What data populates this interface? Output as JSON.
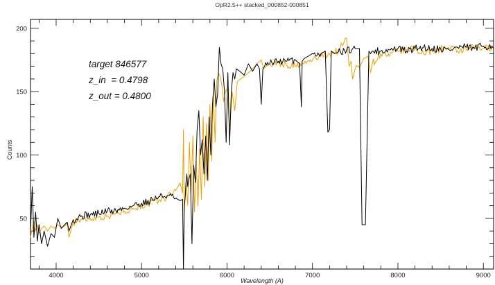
{
  "chart_data": {
    "type": "line",
    "title": "OpR2.5++ stacked_000852-000851",
    "xlabel": "Wavelength (A)",
    "ylabel": "Counts",
    "xlim": [
      3700,
      9120
    ],
    "ylim": [
      10,
      207
    ],
    "x_ticks": [
      4000,
      5000,
      6000,
      7000,
      8000,
      9000
    ],
    "y_ticks": [
      50,
      100,
      150,
      200
    ],
    "grid": false,
    "annotations": [
      "target 846577",
      "z_in  = 0.4798",
      "z_out = 0.4800"
    ],
    "colors": {
      "observed": "#000000",
      "template": "#f0a000"
    },
    "series": [
      {
        "key": "observed",
        "x": [
          3700,
          3720,
          3740,
          3760,
          3780,
          3800,
          3830,
          3860,
          3900,
          3940,
          3980,
          4020,
          4060,
          4100,
          4130,
          4150,
          4200,
          4300,
          4400,
          4500,
          4600,
          4700,
          4800,
          4900,
          5000,
          5100,
          5200,
          5300,
          5400,
          5450,
          5480,
          5490,
          5500,
          5510,
          5520,
          5530,
          5540,
          5550,
          5570,
          5590,
          5610,
          5630,
          5650,
          5670,
          5690,
          5710,
          5730,
          5750,
          5770,
          5790,
          5810,
          5830,
          5850,
          5870,
          5890,
          5910,
          5930,
          5950,
          5970,
          5990,
          6010,
          6030,
          6050,
          6070,
          6090,
          6110,
          6150,
          6200,
          6250,
          6300,
          6350,
          6380,
          6400,
          6420,
          6440,
          6500,
          6600,
          6700,
          6800,
          6850,
          6870,
          6880,
          6900,
          6950,
          7000,
          7100,
          7150,
          7180,
          7200,
          7220,
          7260,
          7300,
          7400,
          7500,
          7550,
          7580,
          7600,
          7620,
          7660,
          7680,
          7700,
          7800,
          7900,
          8000,
          8100,
          8200,
          8300,
          8400,
          8500,
          8600,
          8700,
          8800,
          8900,
          9000,
          9100,
          9120
        ],
        "y": [
          40,
          75,
          35,
          55,
          32,
          45,
          30,
          40,
          28,
          38,
          35,
          50,
          42,
          45,
          47,
          40,
          49,
          52,
          53,
          54,
          56,
          56,
          58,
          60,
          62,
          64,
          67,
          68,
          66,
          64,
          65,
          10,
          60,
          66,
          78,
          85,
          75,
          80,
          85,
          30,
          92,
          78,
          120,
          135,
          100,
          112,
          85,
          115,
          80,
          130,
          100,
          140,
          160,
          138,
          148,
          185,
          172,
          168,
          150,
          110,
          165,
          108,
          150,
          165,
          160,
          168,
          166,
          163,
          172,
          166,
          172,
          168,
          140,
          168,
          170,
          172,
          174,
          174,
          175,
          172,
          138,
          174,
          176,
          178,
          180,
          180,
          182,
          118,
          120,
          182,
          180,
          181,
          183,
          184,
          184,
          45,
          45,
          45,
          182,
          180,
          182,
          182,
          183,
          184,
          182,
          184,
          185,
          184,
          184,
          183,
          185,
          185,
          184,
          186,
          186,
          184
        ]
      },
      {
        "key": "template",
        "x": [
          3700,
          3720,
          3740,
          3760,
          3780,
          3800,
          3830,
          3860,
          3900,
          3940,
          3980,
          4020,
          4060,
          4100,
          4130,
          4150,
          4200,
          4300,
          4400,
          4500,
          4600,
          4700,
          4800,
          4900,
          5000,
          5100,
          5200,
          5300,
          5400,
          5450,
          5480,
          5490,
          5500,
          5520,
          5540,
          5560,
          5580,
          5600,
          5620,
          5640,
          5660,
          5680,
          5700,
          5720,
          5740,
          5760,
          5780,
          5800,
          5820,
          5840,
          5860,
          5880,
          5900,
          5920,
          5940,
          5960,
          5980,
          6000,
          6030,
          6060,
          6090,
          6120,
          6160,
          6200,
          6250,
          6300,
          6350,
          6400,
          6430,
          6460,
          6500,
          6600,
          6700,
          6800,
          6900,
          7000,
          7100,
          7200,
          7300,
          7400,
          7430,
          7450,
          7470,
          7500,
          7600,
          7650,
          7680,
          7700,
          7800,
          7900,
          8000,
          8100,
          8200,
          8300,
          8400,
          8500,
          8600,
          8700,
          8800,
          8900,
          9000,
          9100,
          9120
        ],
        "y": [
          35,
          42,
          48,
          40,
          45,
          38,
          42,
          44,
          40,
          44,
          42,
          45,
          43,
          44,
          46,
          35,
          47,
          49,
          50,
          51,
          52,
          54,
          56,
          58,
          60,
          62,
          64,
          67,
          72,
          78,
          70,
          120,
          55,
          80,
          60,
          110,
          70,
          115,
          55,
          95,
          60,
          105,
          65,
          130,
          75,
          125,
          80,
          140,
          95,
          150,
          110,
          158,
          165,
          162,
          155,
          142,
          150,
          152,
          120,
          150,
          135,
          158,
          160,
          162,
          165,
          168,
          172,
          175,
          168,
          170,
          172,
          173,
          171,
          170,
          172,
          175,
          178,
          180,
          182,
          192,
          170,
          174,
          160,
          168,
          176,
          178,
          165,
          172,
          180,
          178,
          182,
          183,
          184,
          180,
          182,
          184,
          184,
          182,
          183,
          185,
          184,
          185,
          185
        ]
      }
    ]
  }
}
